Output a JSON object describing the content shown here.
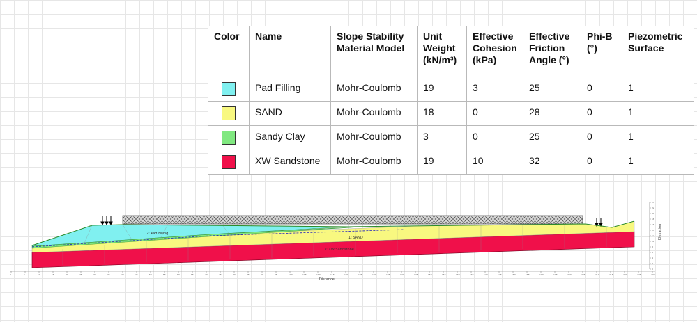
{
  "table": {
    "headers": {
      "color": "Color",
      "name": "Name",
      "model": "Slope Stability Material Model",
      "unit_weight": "Unit Weight (kN/m³)",
      "cohesion": "Effective Cohesion (kPa)",
      "friction": "Effective Friction Angle (°)",
      "phib": "Phi-B (°)",
      "piezo": "Piezometric Surface"
    },
    "rows": [
      {
        "color": "#80f0f0",
        "name": "Pad Filling",
        "model": "Mohr-Coulomb",
        "unit_weight": "19",
        "cohesion": "3",
        "friction": "25",
        "phib": "0",
        "piezo": "1"
      },
      {
        "color": "#f8f880",
        "name": "SAND",
        "model": "Mohr-Coulomb",
        "unit_weight": "18",
        "cohesion": "0",
        "friction": "28",
        "phib": "0",
        "piezo": "1"
      },
      {
        "color": "#80e880",
        "name": "Sandy Clay",
        "model": "Mohr-Coulomb",
        "unit_weight": "3",
        "cohesion": "0",
        "friction": "25",
        "phib": "0",
        "piezo": "1"
      },
      {
        "color": "#f0104a",
        "name": "XW Sandstone",
        "model": "Mohr-Coulomb",
        "unit_weight": "19",
        "cohesion": "10",
        "friction": "32",
        "phib": "0",
        "piezo": "1"
      }
    ]
  },
  "section": {
    "x_axis_label": "Distance",
    "y_axis_label": "Elevation",
    "x_ticks": [
      "0",
      "5",
      "10",
      "15",
      "20",
      "25",
      "30",
      "35",
      "40",
      "45",
      "50",
      "55",
      "60",
      "65",
      "70",
      "75",
      "80",
      "85",
      "90",
      "95",
      "100",
      "105",
      "110",
      "115",
      "120",
      "125",
      "130",
      "135",
      "140",
      "145",
      "150",
      "155",
      "160",
      "165",
      "170",
      "175",
      "180",
      "185",
      "190",
      "195",
      "200",
      "205",
      "210",
      "215",
      "220",
      "225",
      "230"
    ],
    "y_ticks": [
      "0",
      "2",
      "4",
      "6",
      "8",
      "10",
      "12",
      "14",
      "16",
      "18",
      "20",
      "22",
      "24"
    ],
    "region_labels": [
      "2: Pad Filling",
      "1: SAND",
      "3: XW Sandstone"
    ],
    "colors": {
      "pad": "#80f0f0",
      "sand": "#f8f880",
      "clay": "#80e880",
      "rock": "#f0104a",
      "load_hatch": "#b8b8b8",
      "outline": "#2a8a2a",
      "piezo": "#2020c0"
    }
  }
}
